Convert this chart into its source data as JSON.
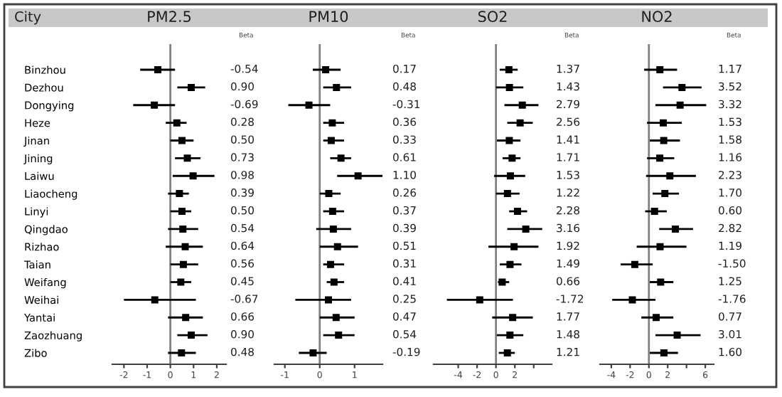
{
  "chart_data": [
    {
      "type": "scatter",
      "orientation": "horizontal",
      "title": "PM2.5",
      "ylabel": "City",
      "annotations": [
        "Beta"
      ],
      "marker": "square",
      "color": "#000000",
      "tick_labels": true,
      "categories": [
        "Binzhou",
        "Dezhou",
        "Dongying",
        "Heze",
        "Jinan",
        "Jining",
        "Laiwu",
        "Liaocheng",
        "Linyi",
        "Qingdao",
        "Rizhao",
        "Taian",
        "Weifang",
        "Weihai",
        "Yantai",
        "Zaozhuang",
        "Zibo"
      ],
      "values": [
        -0.54,
        0.9,
        -0.69,
        0.28,
        0.5,
        0.73,
        0.98,
        0.39,
        0.5,
        0.54,
        0.64,
        0.56,
        0.45,
        -0.67,
        0.66,
        0.9,
        0.48
      ],
      "errors": [
        [
          -1.3,
          0.2
        ],
        [
          0.3,
          1.5
        ],
        [
          -1.6,
          0.2
        ],
        [
          -0.2,
          0.7
        ],
        [
          0.0,
          1.0
        ],
        [
          0.2,
          1.3
        ],
        [
          0.1,
          1.9
        ],
        [
          -0.1,
          0.8
        ],
        [
          0.0,
          0.9
        ],
        [
          -0.1,
          1.2
        ],
        [
          -0.2,
          1.4
        ],
        [
          0.0,
          1.2
        ],
        [
          0.0,
          0.9
        ],
        [
          -2.0,
          1.1
        ],
        [
          -0.1,
          1.4
        ],
        [
          0.3,
          1.6
        ],
        [
          -0.1,
          1.1
        ]
      ],
      "value_labels": [
        "-0.54",
        "0.90",
        "-0.69",
        "0.28",
        "0.50",
        "0.73",
        "0.98",
        "0.39",
        "0.50",
        "0.54",
        "0.64",
        "0.56",
        "0.45",
        "-0.67",
        "0.66",
        "0.90",
        "0.48"
      ],
      "xlim": [
        -2.5,
        2.4
      ],
      "xticks": [
        -2,
        -1,
        0,
        1,
        2
      ],
      "ref_lines": [
        {
          "axis": "x",
          "value": 0,
          "color": "#808080"
        }
      ],
      "grid": false,
      "legend": false
    },
    {
      "type": "scatter",
      "orientation": "horizontal",
      "title": "PM10",
      "annotations": [
        "Beta"
      ],
      "marker": "square",
      "color": "#000000",
      "tick_labels": "x",
      "categories": [
        null,
        null,
        null,
        null,
        null,
        null,
        null,
        null,
        null,
        null,
        null,
        null,
        null,
        null,
        null,
        null,
        null
      ],
      "values": [
        0.17,
        0.48,
        -0.31,
        0.36,
        0.33,
        0.61,
        1.1,
        0.26,
        0.37,
        0.39,
        0.51,
        0.31,
        0.41,
        0.25,
        0.47,
        0.54,
        -0.19
      ],
      "errors": [
        [
          -0.2,
          0.6
        ],
        [
          0.1,
          0.9
        ],
        [
          -0.9,
          0.3
        ],
        [
          0.1,
          0.7
        ],
        [
          0.1,
          0.7
        ],
        [
          0.3,
          0.9
        ],
        [
          0.5,
          1.8
        ],
        [
          0.0,
          0.6
        ],
        [
          0.1,
          0.7
        ],
        [
          -0.1,
          0.9
        ],
        [
          0.0,
          1.1
        ],
        [
          0.1,
          0.7
        ],
        [
          0.2,
          0.7
        ],
        [
          -0.7,
          0.9
        ],
        [
          0.0,
          1.0
        ],
        [
          0.1,
          1.0
        ],
        [
          -0.6,
          0.2
        ]
      ],
      "value_labels": [
        "0.17",
        "0.48",
        "-0.31",
        "0.36",
        "0.33",
        "0.61",
        "1.10",
        "0.26",
        "0.37",
        "0.39",
        "0.51",
        "0.31",
        "0.41",
        "0.25",
        "0.47",
        "0.54",
        "-0.19"
      ],
      "xlim": [
        -1.3,
        1.8
      ],
      "xticks": [
        -1,
        0,
        1
      ],
      "ref_lines": [
        {
          "axis": "x",
          "value": 0,
          "color": "#808080"
        }
      ],
      "grid": false,
      "legend": false
    },
    {
      "type": "scatter",
      "orientation": "horizontal",
      "title": "SO2",
      "annotations": [
        "Beta"
      ],
      "marker": "square",
      "color": "#000000",
      "tick_labels": "x",
      "categories": [
        null,
        null,
        null,
        null,
        null,
        null,
        null,
        null,
        null,
        null,
        null,
        null,
        null,
        null,
        null,
        null,
        null
      ],
      "values": [
        1.37,
        1.43,
        2.79,
        2.56,
        1.41,
        1.71,
        1.53,
        1.22,
        2.28,
        3.16,
        1.92,
        1.49,
        0.66,
        -1.72,
        1.77,
        1.48,
        1.21
      ],
      "errors": [
        [
          0.4,
          2.3
        ],
        [
          0.0,
          2.9
        ],
        [
          0.9,
          4.5
        ],
        [
          1.2,
          3.9
        ],
        [
          0.1,
          2.6
        ],
        [
          0.7,
          2.6
        ],
        [
          -0.2,
          3.1
        ],
        [
          0.0,
          2.5
        ],
        [
          1.4,
          3.3
        ],
        [
          1.2,
          4.9
        ],
        [
          -0.8,
          4.5
        ],
        [
          0.4,
          2.7
        ],
        [
          0.2,
          1.4
        ],
        [
          -5.2,
          1.8
        ],
        [
          -0.4,
          3.9
        ],
        [
          0.1,
          2.9
        ],
        [
          0.3,
          2.0
        ]
      ],
      "value_labels": [
        "1.37",
        "1.43",
        "2.79",
        "2.56",
        "1.41",
        "1.71",
        "1.53",
        "1.22",
        "2.28",
        "3.16",
        "1.92",
        "1.49",
        "0.66",
        "-1.72",
        "1.77",
        "1.48",
        "1.21"
      ],
      "xlim": [
        -6.6,
        5.9
      ],
      "xticks": [
        -4,
        -2,
        0,
        2,
        {
          "value": 4,
          "label": null
        }
      ],
      "ref_lines": [
        {
          "axis": "x",
          "value": 0,
          "color": "#808080"
        }
      ],
      "grid": false,
      "legend": false
    },
    {
      "type": "scatter",
      "orientation": "horizontal",
      "title": "NO2",
      "annotations": [
        "Beta"
      ],
      "marker": "square",
      "color": "#000000",
      "tick_labels": "x",
      "categories": [
        null,
        null,
        null,
        null,
        null,
        null,
        null,
        null,
        null,
        null,
        null,
        null,
        null,
        null,
        null,
        null,
        null
      ],
      "values": [
        1.17,
        3.52,
        3.32,
        1.53,
        1.58,
        1.16,
        2.23,
        1.7,
        0.6,
        2.82,
        1.19,
        -1.5,
        1.25,
        -1.76,
        0.77,
        3.01,
        1.6
      ],
      "errors": [
        [
          -0.5,
          3.0
        ],
        [
          1.5,
          5.6
        ],
        [
          0.7,
          6.1
        ],
        [
          -0.2,
          3.5
        ],
        [
          0.1,
          3.3
        ],
        [
          -0.2,
          2.7
        ],
        [
          -0.3,
          5.0
        ],
        [
          0.4,
          3.2
        ],
        [
          -0.4,
          1.9
        ],
        [
          1.1,
          4.7
        ],
        [
          -1.3,
          4.0
        ],
        [
          -3.0,
          0.4
        ],
        [
          0.1,
          2.6
        ],
        [
          -3.9,
          0.7
        ],
        [
          -0.8,
          2.6
        ],
        [
          0.7,
          5.5
        ],
        [
          0.1,
          3.1
        ]
      ],
      "value_labels": [
        "1.17",
        "3.52",
        "3.32",
        "1.53",
        "1.58",
        "1.16",
        "2.23",
        "1.70",
        "0.60",
        "2.82",
        "1.19",
        "-1.50",
        "1.25",
        "-1.76",
        "0.77",
        "3.01",
        "1.60"
      ],
      "xlim": [
        -5.2,
        6.9
      ],
      "xticks": [
        -4,
        -2,
        0,
        2,
        {
          "value": 4,
          "label": null
        },
        6
      ],
      "ref_lines": [
        {
          "axis": "x",
          "value": 0,
          "color": "#808080"
        }
      ],
      "grid": false,
      "legend": false
    }
  ]
}
